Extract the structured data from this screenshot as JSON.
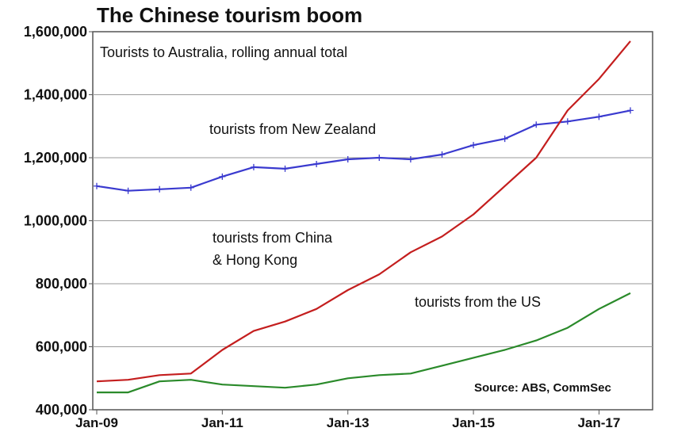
{
  "chart_data": {
    "type": "line",
    "title": "The Chinese tourism boom",
    "subtitle": "Tourists to Australia, rolling annual total",
    "source": "Source: ABS, CommSec",
    "xlabel": "",
    "ylabel": "",
    "x_ticks": [
      "Jan-09",
      "Jan-11",
      "Jan-13",
      "Jan-15",
      "Jan-17"
    ],
    "y_ticks": [
      "400,000",
      "600,000",
      "800,000",
      "1,000,000",
      "1,200,000",
      "1,400,000",
      "1,600,000"
    ],
    "ylim": [
      400000,
      1600000
    ],
    "xlim": [
      "Jan-09",
      "Jul-17"
    ],
    "grid": true,
    "x": [
      "Jan-09",
      "Jul-09",
      "Jan-10",
      "Jul-10",
      "Jan-11",
      "Jul-11",
      "Jan-12",
      "Jul-12",
      "Jan-13",
      "Jul-13",
      "Jan-14",
      "Jul-14",
      "Jan-15",
      "Jul-15",
      "Jan-16",
      "Jul-16",
      "Jan-17",
      "Jul-17"
    ],
    "series": [
      {
        "name": "tourists from New Zealand",
        "label": "tourists from New Zealand",
        "color": "#3a3acf",
        "marker": "plus",
        "values": [
          1110000,
          1095000,
          1100000,
          1105000,
          1140000,
          1170000,
          1165000,
          1180000,
          1195000,
          1200000,
          1195000,
          1210000,
          1240000,
          1260000,
          1305000,
          1315000,
          1330000,
          1350000
        ]
      },
      {
        "name": "tourists from China & Hong Kong",
        "label_lines": [
          "tourists from China",
          "& Hong Kong"
        ],
        "color": "#c41e1e",
        "values": [
          490000,
          495000,
          510000,
          515000,
          590000,
          650000,
          680000,
          720000,
          780000,
          830000,
          900000,
          950000,
          1020000,
          1110000,
          1200000,
          1350000,
          1450000,
          1570000
        ]
      },
      {
        "name": "tourists from the US",
        "label": "tourists from the US",
        "color": "#2a8a2a",
        "values": [
          455000,
          455000,
          490000,
          495000,
          480000,
          475000,
          470000,
          480000,
          500000,
          510000,
          515000,
          540000,
          565000,
          590000,
          620000,
          660000,
          720000,
          770000
        ]
      }
    ]
  }
}
